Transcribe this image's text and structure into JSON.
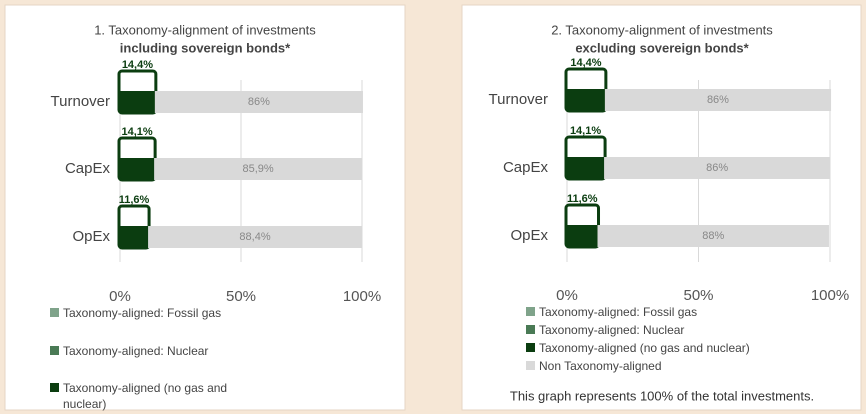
{
  "chart_data": [
    {
      "type": "bar",
      "title": "1. Taxonomy-alignment of investments",
      "subtitle": "including sovereign bonds*",
      "categories": [
        "Turnover",
        "CapEx",
        "OpEx"
      ],
      "series": [
        {
          "name": "Taxonomy-aligned: Fossil gas",
          "color": "#7fa38a",
          "values": [
            0,
            0,
            0
          ]
        },
        {
          "name": "Taxonomy-aligned: Nuclear",
          "color": "#4a7a55",
          "values": [
            0,
            0,
            0
          ]
        },
        {
          "name": "Taxonomy-aligned (no gas and nuclear)",
          "color": "#0b3d10",
          "values": [
            14.4,
            14.1,
            11.6
          ],
          "value_labels": [
            "14,4%",
            "14,1%",
            "11,6%"
          ]
        },
        {
          "color": "#d9d9d9",
          "values": [
            86,
            85.9,
            88.4
          ],
          "value_labels": [
            "86%",
            "85,9%",
            "88,4%"
          ]
        }
      ],
      "xlim": [
        0,
        100
      ],
      "xticks": [
        {
          "value": 0,
          "label": "0%"
        },
        {
          "value": 50,
          "label": "50%"
        },
        {
          "value": 100,
          "label": "100%"
        }
      ],
      "grid": true
    },
    {
      "type": "bar",
      "title": "2. Taxonomy-alignment of investments",
      "subtitle": "excluding sovereign bonds*",
      "categories": [
        "Turnover",
        "CapEx",
        "OpEx"
      ],
      "series": [
        {
          "name": "Taxonomy-aligned: Fossil gas",
          "color": "#7fa38a",
          "values": [
            0,
            0,
            0
          ]
        },
        {
          "name": "Taxonomy-aligned: Nuclear",
          "color": "#4a7a55",
          "values": [
            0,
            0,
            0
          ]
        },
        {
          "name": "Taxonomy-aligned (no gas and nuclear)",
          "color": "#0b3d10",
          "values": [
            14.4,
            14.1,
            11.6
          ],
          "value_labels": [
            "14,4%",
            "14,1%",
            "11,6%"
          ]
        },
        {
          "name": "Non Taxonomy-aligned",
          "color": "#d9d9d9",
          "values": [
            86,
            86,
            88
          ],
          "value_labels": [
            "86%",
            "86%",
            "88%"
          ]
        }
      ],
      "xlim": [
        0,
        100
      ],
      "xticks": [
        {
          "value": 0,
          "label": "0%"
        },
        {
          "value": 50,
          "label": "50%"
        },
        {
          "value": 100,
          "label": "100%"
        }
      ],
      "grid": true,
      "note": "This graph represents 100% of the total investments."
    }
  ]
}
